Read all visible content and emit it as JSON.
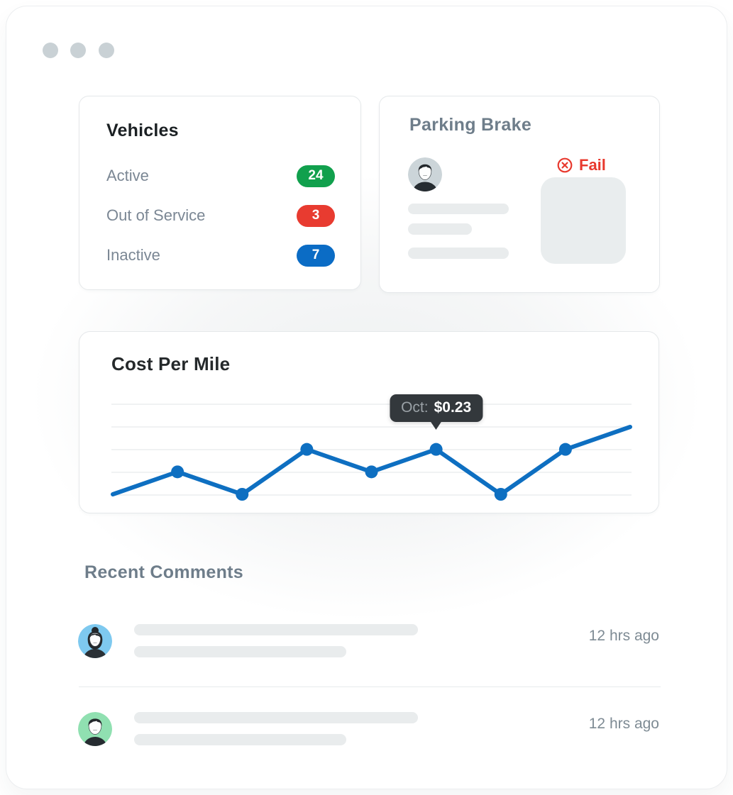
{
  "vehicles_card": {
    "title": "Vehicles",
    "rows": [
      {
        "label": "Active",
        "count": "24",
        "color": "#11a04d"
      },
      {
        "label": "Out of Service",
        "count": "3",
        "color": "#e83b30"
      },
      {
        "label": "Inactive",
        "count": "7",
        "color": "#0b6cc5"
      }
    ]
  },
  "parking_card": {
    "title": "Parking Brake",
    "status_label": "Fail",
    "status_color": "#e8392e",
    "status_icon": "circle-x-icon",
    "avatar_icon": "person-icon"
  },
  "chart_card": {
    "title": "Cost Per Mile",
    "tooltip_label": "Oct:",
    "tooltip_value": "$0.23"
  },
  "chart_data": {
    "type": "line",
    "title": "Cost Per Mile",
    "categories": [
      "",
      "",
      "",
      "",
      "",
      "Oct",
      "",
      "",
      ""
    ],
    "values": [
      0.19,
      0.21,
      0.19,
      0.23,
      0.21,
      0.23,
      0.19,
      0.23,
      0.25
    ],
    "unit": "$ per mile",
    "ylim": [
      0.17,
      0.27
    ],
    "line_color": "#0e6fc1",
    "marker_indices": [
      1,
      2,
      3,
      4,
      5,
      6,
      7
    ],
    "tooltip": {
      "category": "Oct",
      "value": "$0.23",
      "point_index": 5
    },
    "grid": true,
    "gridline_count": 5,
    "legend": false,
    "xlabel": "",
    "ylabel": ""
  },
  "comments": {
    "title": "Recent Comments",
    "items": [
      {
        "timestamp": "12 hrs ago",
        "avatar_icon": "person-female-icon",
        "avatar_color": "#7ec9ef"
      },
      {
        "timestamp": "12 hrs ago",
        "avatar_icon": "person-male-icon",
        "avatar_color": "#90e0b1"
      }
    ]
  },
  "colors": {
    "accent_blue": "#0e6fc1",
    "success_green": "#11a04d",
    "danger_red": "#e83b30",
    "info_blue": "#0b6cc5",
    "muted_text": "#7b8794",
    "heading_grey": "#6e7d8a",
    "heading_dark": "#1d2225",
    "skeleton": "#e9eced",
    "tooltip_bg": "#33383c",
    "window_dot": "#c9d1d5"
  }
}
